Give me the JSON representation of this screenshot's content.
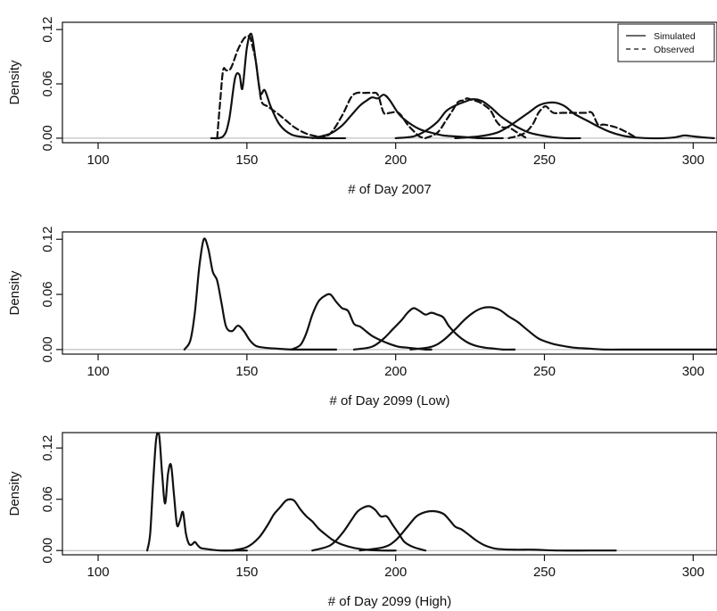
{
  "chart_data": [
    {
      "type": "line",
      "xlabel": "# of Day 2007",
      "ylabel": "Density",
      "xlim": [
        88,
        308
      ],
      "ylim": [
        -0.005,
        0.128
      ],
      "xticks": [
        "100",
        "150",
        "200",
        "250",
        "300"
      ],
      "yticks": [
        "0.00",
        "0.06",
        "0.12"
      ],
      "legend": {
        "position": "top-right",
        "entries": [
          {
            "label": "Simulated",
            "style": "solid"
          },
          {
            "label": "Observed",
            "style": "dashed"
          }
        ]
      },
      "series": [
        {
          "style": "solid",
          "x": [
            138,
            142,
            144,
            146,
            147.5,
            148.5,
            150,
            151.5,
            153,
            154.5,
            156,
            158,
            161,
            165,
            170,
            175,
            180,
            183
          ],
          "y": [
            0,
            0.002,
            0.02,
            0.066,
            0.07,
            0.055,
            0.1,
            0.115,
            0.085,
            0.05,
            0.053,
            0.035,
            0.015,
            0.004,
            0.001,
            0,
            0,
            0
          ]
        },
        {
          "style": "solid",
          "x": [
            172,
            178,
            182,
            185,
            188,
            190,
            192,
            194,
            196,
            198,
            201,
            204,
            208,
            212,
            216,
            220,
            224,
            228,
            232,
            236
          ],
          "y": [
            0,
            0.005,
            0.014,
            0.025,
            0.036,
            0.041,
            0.045,
            0.044,
            0.048,
            0.042,
            0.027,
            0.018,
            0.01,
            0.006,
            0.003,
            0.002,
            0.001,
            0,
            0,
            0
          ]
        },
        {
          "style": "solid",
          "x": [
            200,
            206,
            210,
            214,
            217,
            220,
            223,
            226,
            229,
            232,
            235,
            238,
            241,
            245,
            249,
            253,
            257,
            262
          ],
          "y": [
            0,
            0.002,
            0.008,
            0.018,
            0.03,
            0.036,
            0.04,
            0.043,
            0.041,
            0.034,
            0.025,
            0.018,
            0.012,
            0.006,
            0.003,
            0.001,
            0,
            0
          ]
        },
        {
          "style": "solid",
          "x": [
            220,
            228,
            234,
            238,
            242,
            245,
            248,
            251,
            254,
            257,
            260,
            264,
            268,
            272,
            276,
            280,
            285,
            290,
            294,
            297,
            300,
            303,
            307
          ],
          "y": [
            0,
            0.002,
            0.006,
            0.013,
            0.022,
            0.029,
            0.036,
            0.039,
            0.039,
            0.035,
            0.027,
            0.02,
            0.013,
            0.007,
            0.003,
            0.001,
            0,
            0,
            0.001,
            0.003,
            0.002,
            0.001,
            0
          ]
        }
      ],
      "observed": [
        {
          "style": "dashed",
          "x": [
            140,
            141,
            142,
            143,
            144,
            145,
            147,
            149,
            150,
            151,
            152,
            153,
            154,
            155,
            157,
            160,
            163,
            166,
            170,
            175,
            178
          ],
          "y": [
            0,
            0.04,
            0.075,
            0.075,
            0.075,
            0.08,
            0.098,
            0.11,
            0.112,
            0.112,
            0.1,
            0.085,
            0.06,
            0.04,
            0.035,
            0.028,
            0.02,
            0.012,
            0.005,
            0.001,
            0
          ]
        },
        {
          "style": "dashed",
          "x": [
            174,
            178,
            182,
            185,
            187,
            189,
            192,
            194,
            196,
            198,
            201,
            204,
            206,
            208,
            210
          ],
          "y": [
            0,
            0.005,
            0.025,
            0.045,
            0.05,
            0.05,
            0.05,
            0.048,
            0.028,
            0.028,
            0.028,
            0.015,
            0.008,
            0.002,
            0
          ]
        },
        {
          "style": "dashed",
          "x": [
            210,
            214,
            217,
            219,
            221,
            223,
            224,
            226,
            228,
            230,
            232,
            234,
            236,
            238,
            240,
            242,
            244
          ],
          "y": [
            0,
            0.006,
            0.02,
            0.03,
            0.04,
            0.042,
            0.044,
            0.042,
            0.04,
            0.036,
            0.03,
            0.018,
            0.012,
            0.012,
            0.008,
            0.004,
            0
          ]
        },
        {
          "style": "dashed",
          "x": [
            238,
            243,
            246,
            248,
            250,
            251,
            253,
            256,
            259,
            262,
            264,
            266,
            268,
            270,
            274,
            278,
            281
          ],
          "y": [
            0,
            0.005,
            0.015,
            0.028,
            0.035,
            0.034,
            0.028,
            0.028,
            0.028,
            0.028,
            0.028,
            0.028,
            0.015,
            0.015,
            0.012,
            0.006,
            0
          ]
        }
      ]
    },
    {
      "type": "line",
      "xlabel": "# of Day 2099 (Low)",
      "ylabel": "Density",
      "xlim": [
        88,
        308
      ],
      "ylim": [
        -0.005,
        0.128
      ],
      "xticks": [
        "100",
        "150",
        "200",
        "250",
        "300"
      ],
      "yticks": [
        "0.00",
        "0.06",
        "0.12"
      ],
      "series": [
        {
          "style": "solid",
          "x": [
            129,
            131,
            132.5,
            134,
            135.5,
            137,
            138.5,
            140,
            141.5,
            143,
            145,
            147,
            149,
            151,
            153,
            156,
            160,
            165,
            170,
            175,
            180
          ],
          "y": [
            0,
            0.01,
            0.04,
            0.09,
            0.12,
            0.11,
            0.085,
            0.075,
            0.05,
            0.025,
            0.02,
            0.026,
            0.02,
            0.01,
            0.004,
            0.002,
            0.001,
            0,
            0,
            0,
            0
          ]
        },
        {
          "style": "solid",
          "x": [
            165,
            168,
            170,
            172,
            174,
            176,
            178,
            180,
            182,
            184,
            186,
            188,
            190,
            192,
            195,
            198,
            201,
            204,
            207,
            210,
            212
          ],
          "y": [
            0,
            0.005,
            0.018,
            0.038,
            0.052,
            0.058,
            0.06,
            0.052,
            0.045,
            0.042,
            0.028,
            0.025,
            0.02,
            0.015,
            0.01,
            0.006,
            0.003,
            0.002,
            0.001,
            0,
            0
          ]
        },
        {
          "style": "solid",
          "x": [
            186,
            192,
            196,
            199,
            202,
            204,
            206,
            208,
            210,
            212,
            214,
            216,
            218,
            221,
            224,
            227,
            230,
            233,
            236,
            240
          ],
          "y": [
            0,
            0.003,
            0.012,
            0.022,
            0.032,
            0.04,
            0.045,
            0.042,
            0.038,
            0.04,
            0.038,
            0.035,
            0.025,
            0.015,
            0.008,
            0.004,
            0.002,
            0.001,
            0,
            0
          ]
        },
        {
          "style": "solid",
          "x": [
            205,
            212,
            216,
            220,
            223,
            226,
            229,
            232,
            235,
            238,
            241,
            244,
            248,
            252,
            256,
            260,
            265,
            270,
            280,
            295,
            308
          ],
          "y": [
            0,
            0.003,
            0.01,
            0.022,
            0.032,
            0.04,
            0.045,
            0.046,
            0.043,
            0.036,
            0.03,
            0.022,
            0.012,
            0.007,
            0.004,
            0.002,
            0.001,
            0,
            0,
            0,
            0
          ]
        }
      ]
    },
    {
      "type": "line",
      "xlabel": "# of Day  2099 (High)",
      "ylabel": "Density",
      "xlim": [
        88,
        308
      ],
      "ylim": [
        -0.005,
        0.138
      ],
      "xticks": [
        "100",
        "150",
        "200",
        "250",
        "300"
      ],
      "yticks": [
        "0.00",
        "0.06",
        "0.12"
      ],
      "series": [
        {
          "style": "solid",
          "x": [
            116.5,
            117.5,
            118.5,
            119.5,
            120.5,
            121.5,
            122.5,
            123.5,
            124.5,
            125.5,
            126.5,
            127.5,
            128.5,
            129.5,
            130.5,
            131.5,
            132.5,
            133.5,
            134.5,
            136,
            138,
            141,
            145,
            150
          ],
          "y": [
            0,
            0.02,
            0.08,
            0.13,
            0.135,
            0.09,
            0.055,
            0.09,
            0.1,
            0.065,
            0.03,
            0.035,
            0.045,
            0.02,
            0.008,
            0.007,
            0.01,
            0.006,
            0.003,
            0.002,
            0.001,
            0,
            0,
            0
          ]
        },
        {
          "style": "solid",
          "x": [
            145,
            150,
            154,
            157,
            159,
            161,
            163,
            164.5,
            166,
            168,
            170,
            172,
            174,
            176,
            179,
            182,
            186,
            190,
            195,
            200
          ],
          "y": [
            0,
            0.004,
            0.015,
            0.03,
            0.042,
            0.05,
            0.058,
            0.06,
            0.058,
            0.048,
            0.04,
            0.034,
            0.026,
            0.02,
            0.012,
            0.007,
            0.003,
            0.001,
            0,
            0
          ]
        },
        {
          "style": "solid",
          "x": [
            172,
            178,
            182,
            185,
            187,
            189,
            191,
            193,
            195,
            197,
            199,
            201,
            203,
            206,
            210
          ],
          "y": [
            0,
            0.006,
            0.02,
            0.035,
            0.045,
            0.05,
            0.052,
            0.048,
            0.04,
            0.04,
            0.03,
            0.02,
            0.01,
            0.004,
            0
          ]
        },
        {
          "style": "solid",
          "x": [
            188,
            196,
            200,
            204,
            207,
            210,
            213,
            216,
            218,
            220,
            222,
            224,
            227,
            230,
            234,
            240,
            246,
            255,
            265,
            274
          ],
          "y": [
            0,
            0.004,
            0.012,
            0.028,
            0.04,
            0.045,
            0.046,
            0.043,
            0.036,
            0.028,
            0.025,
            0.02,
            0.012,
            0.006,
            0.002,
            0.001,
            0.001,
            0,
            0,
            0
          ]
        }
      ]
    }
  ]
}
